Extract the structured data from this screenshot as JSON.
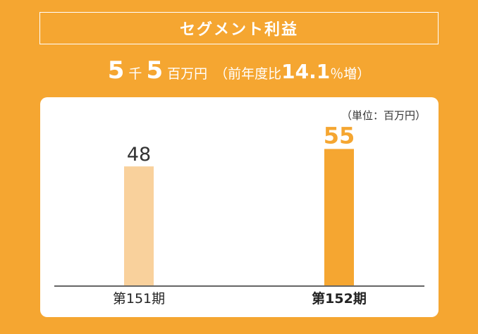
{
  "header": {
    "title": "セグメント利益"
  },
  "headline": {
    "num1": "5",
    "sep": "千",
    "num2": "5",
    "unit": "百万円",
    "prefix": "（前年度比",
    "pct": "14.1",
    "suffix": "％増）"
  },
  "colors": {
    "background": "#F5A631",
    "bar_previous": "#F9D19C",
    "bar_current": "#F5A631",
    "axis": "#666666"
  },
  "chart_data": {
    "type": "bar",
    "unit_label": "（単位：百万円）",
    "categories": [
      "第151期",
      "第152期"
    ],
    "values": [
      48,
      55
    ],
    "ylim": [
      0,
      65
    ],
    "grid": false,
    "legend": "none"
  }
}
